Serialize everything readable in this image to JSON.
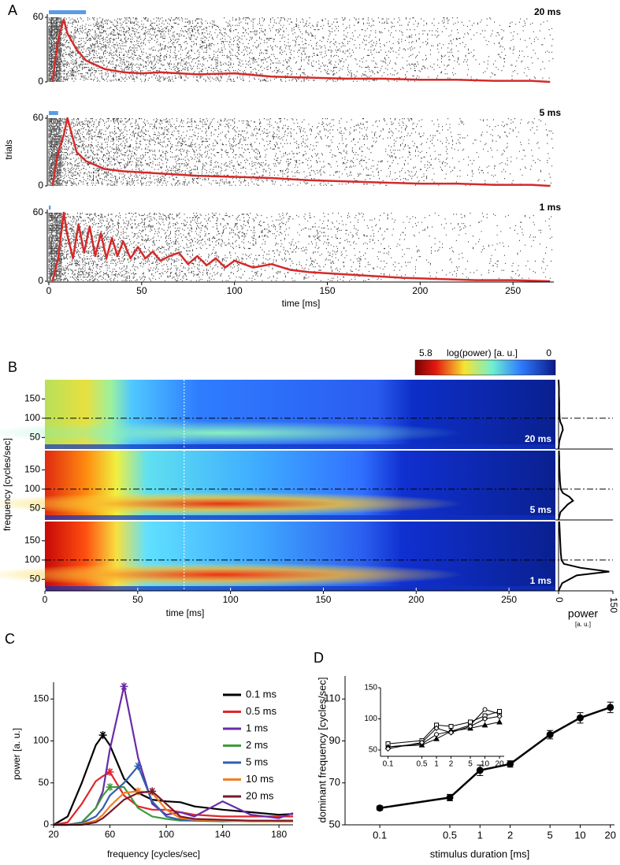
{
  "chart_data": [
    {
      "type": "raster",
      "label": "A",
      "xlabel": "time [ms]",
      "ylabel": "trials",
      "xlim": [
        0,
        272
      ],
      "xticks": [
        0,
        50,
        100,
        150,
        200,
        250
      ],
      "line_color": "#d42a2a",
      "stimulus_color": "#5b9be6",
      "panels": [
        {
          "name": "20 ms",
          "ylim": [
            0,
            60
          ],
          "yticks": [
            0,
            60
          ],
          "stimulus_ms": 20,
          "x": [
            2,
            5,
            8,
            10,
            15,
            20,
            30,
            40,
            50,
            60,
            80,
            100,
            120,
            140,
            160,
            180,
            200,
            220,
            240,
            260,
            270
          ],
          "values": [
            0,
            40,
            58,
            45,
            30,
            20,
            12,
            9,
            8,
            9,
            7,
            8,
            5,
            4,
            3,
            3,
            2,
            2,
            1,
            1,
            0
          ]
        },
        {
          "name": "5 ms",
          "ylim": [
            0,
            60
          ],
          "yticks": [
            0,
            60
          ],
          "stimulus_ms": 5,
          "x": [
            2,
            5,
            8,
            10,
            15,
            20,
            30,
            40,
            50,
            60,
            80,
            100,
            120,
            140,
            160,
            180,
            200,
            220,
            240,
            260,
            270
          ],
          "values": [
            0,
            30,
            45,
            60,
            30,
            22,
            15,
            13,
            12,
            11,
            9,
            8,
            7,
            5,
            4,
            3,
            2,
            2,
            1,
            1,
            0
          ]
        },
        {
          "name": "1 ms",
          "ylim": [
            0,
            60
          ],
          "yticks": [
            0,
            60
          ],
          "stimulus_ms": 1,
          "x": [
            2,
            5,
            8,
            10,
            13,
            16,
            19,
            22,
            25,
            28,
            31,
            34,
            37,
            40,
            44,
            48,
            52,
            56,
            60,
            65,
            70,
            75,
            80,
            85,
            90,
            95,
            100,
            110,
            120,
            130,
            140,
            150,
            170,
            190,
            210,
            230,
            250,
            270
          ],
          "values": [
            0,
            20,
            60,
            40,
            20,
            50,
            25,
            48,
            22,
            42,
            20,
            38,
            22,
            35,
            20,
            30,
            20,
            26,
            18,
            22,
            25,
            15,
            22,
            14,
            20,
            12,
            18,
            12,
            15,
            10,
            8,
            7,
            5,
            3,
            2,
            1,
            1,
            0
          ]
        }
      ]
    },
    {
      "type": "heatmap",
      "label": "B",
      "xlabel": "time [ms]",
      "ylabel": "frequency [cycles/sec]",
      "xlim": [
        0,
        275
      ],
      "xticks": [
        0,
        50,
        100,
        150,
        200,
        250
      ],
      "ylim": [
        20,
        200
      ],
      "yticks": [
        50,
        100,
        150
      ],
      "reference_frequency": 100,
      "marker_time": 75,
      "colorbar": {
        "label": "log(power) [a. u.]",
        "ticks": [
          5.8,
          0
        ]
      },
      "power_axis": {
        "label": "power",
        "unit": "[a. u.]",
        "xlim": [
          0,
          150
        ],
        "xticks": [
          0,
          150
        ]
      },
      "frequencies": [
        20,
        40,
        60,
        70,
        80,
        90,
        100,
        120,
        140,
        160,
        180,
        200
      ],
      "panels": [
        {
          "name": "20 ms",
          "power": [
            0,
            2,
            8,
            12,
            10,
            5,
            3,
            2,
            2,
            1,
            1,
            0
          ]
        },
        {
          "name": "5 ms",
          "power": [
            0,
            5,
            25,
            40,
            30,
            12,
            6,
            4,
            3,
            2,
            2,
            1
          ]
        },
        {
          "name": "1 ms",
          "power": [
            0,
            10,
            50,
            140,
            60,
            15,
            8,
            6,
            5,
            4,
            3,
            2
          ]
        }
      ]
    },
    {
      "type": "line",
      "label": "C",
      "xlabel": "frequency [cycles/sec]",
      "ylabel": "power [a. u.]",
      "xlim": [
        20,
        190
      ],
      "xticks": [
        20,
        60,
        100,
        140,
        180
      ],
      "ylim": [
        0,
        170
      ],
      "yticks": [
        0,
        50,
        100,
        150
      ],
      "x": [
        20,
        30,
        40,
        50,
        55,
        60,
        70,
        80,
        90,
        100,
        110,
        120,
        140,
        160,
        180,
        190
      ],
      "series": [
        {
          "name": "0.1 ms",
          "color": "#000000",
          "values": [
            0,
            10,
            50,
            95,
            107,
            95,
            55,
            38,
            30,
            28,
            27,
            22,
            18,
            15,
            12,
            13
          ]
        },
        {
          "name": "0.5 ms",
          "color": "#e0262b",
          "values": [
            0,
            3,
            25,
            52,
            58,
            63,
            35,
            22,
            18,
            18,
            15,
            12,
            10,
            10,
            10,
            10
          ]
        },
        {
          "name": "1 ms",
          "color": "#6a2aa8",
          "values": [
            0,
            0,
            3,
            20,
            40,
            90,
            165,
            80,
            25,
            12,
            15,
            10,
            28,
            12,
            8,
            14
          ]
        },
        {
          "name": "2 ms",
          "color": "#3f9a3f",
          "values": [
            0,
            0,
            3,
            20,
            35,
            45,
            45,
            20,
            10,
            7,
            5,
            5,
            4,
            5,
            5,
            5
          ]
        },
        {
          "name": "5 ms",
          "color": "#2f5fb0",
          "values": [
            0,
            0,
            2,
            10,
            20,
            35,
            50,
            70,
            28,
            10,
            6,
            5,
            5,
            5,
            4,
            4
          ]
        },
        {
          "name": "10 ms",
          "color": "#f07f1f",
          "values": [
            0,
            0,
            1,
            5,
            12,
            22,
            38,
            40,
            38,
            18,
            8,
            6,
            5,
            4,
            4,
            4
          ]
        },
        {
          "name": "20 ms",
          "color": "#7a1a2a",
          "values": [
            0,
            0,
            0,
            3,
            8,
            15,
            30,
            38,
            40,
            25,
            10,
            7,
            6,
            5,
            5,
            5
          ]
        }
      ]
    },
    {
      "type": "errorline",
      "label": "D",
      "xlabel": "stimulus duration [ms]",
      "ylabel": "dominant frequency [cycles/sec]",
      "xscale": "log",
      "xlim": [
        0.045,
        22
      ],
      "xticks": [
        0.1,
        0.5,
        1,
        2,
        5,
        10,
        20
      ],
      "ylim": [
        50,
        121
      ],
      "yticks": [
        50,
        70,
        90,
        110
      ],
      "color": "#000000",
      "x": [
        0.1,
        0.5,
        1,
        2,
        5,
        10,
        20
      ],
      "values": [
        58,
        63,
        76,
        79,
        93,
        101,
        106
      ],
      "errors": [
        1,
        1.5,
        2.5,
        1.5,
        2,
        2.5,
        2.5
      ]
    },
    {
      "type": "markerline",
      "xscale": "log",
      "xlim": [
        0.07,
        25
      ],
      "xticks": [
        0.1,
        0.5,
        1,
        2,
        5,
        10,
        20
      ],
      "ylim": [
        50,
        150
      ],
      "yticks": [
        50,
        100,
        150
      ],
      "color": "#000000",
      "x": [
        0.1,
        0.5,
        1,
        2,
        5,
        10,
        20
      ],
      "series": [
        {
          "marker": "circle",
          "values": [
            55,
            60,
            75,
            80,
            90,
            115,
            108
          ]
        },
        {
          "marker": "square",
          "values": [
            60,
            65,
            90,
            88,
            95,
            105,
            112
          ]
        },
        {
          "marker": "triangle",
          "values": [
            55,
            58,
            68,
            80,
            85,
            90,
            95
          ]
        },
        {
          "marker": "diamond",
          "values": [
            52,
            62,
            85,
            78,
            88,
            100,
            104
          ]
        }
      ]
    }
  ]
}
